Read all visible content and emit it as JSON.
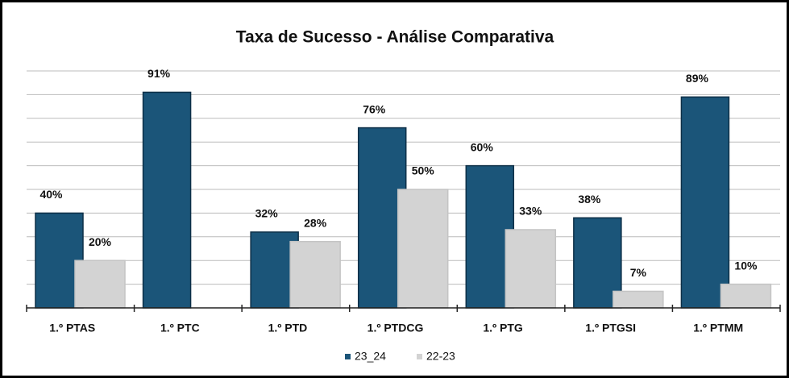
{
  "chart_data": {
    "type": "bar",
    "title": "Taxa de Sucesso - Análise Comparativa",
    "categories": [
      "1.º PTAS",
      "1.º PTC",
      "1.º PTD",
      "1.º PTDCG",
      "1.º PTG",
      "1.º PTGSI",
      "1.º PTMM"
    ],
    "series": [
      {
        "name": "23_24",
        "color": "#1b5579",
        "values": [
          40,
          91,
          32,
          76,
          60,
          38,
          89
        ],
        "value_labels": [
          "40%",
          "91%",
          "32%",
          "76%",
          "60%",
          "38%",
          "89%"
        ]
      },
      {
        "name": "22-23",
        "color": "#d3d3d3",
        "values": [
          20,
          null,
          28,
          50,
          33,
          7,
          10
        ],
        "value_labels": [
          "20%",
          null,
          "28%",
          "50%",
          "33%",
          "7%",
          "10%"
        ]
      }
    ],
    "ylim": [
      0,
      100
    ],
    "yticks": [
      0,
      10,
      20,
      30,
      40,
      50,
      60,
      70,
      80,
      90,
      100
    ],
    "grid": true,
    "legend": "bottom"
  }
}
